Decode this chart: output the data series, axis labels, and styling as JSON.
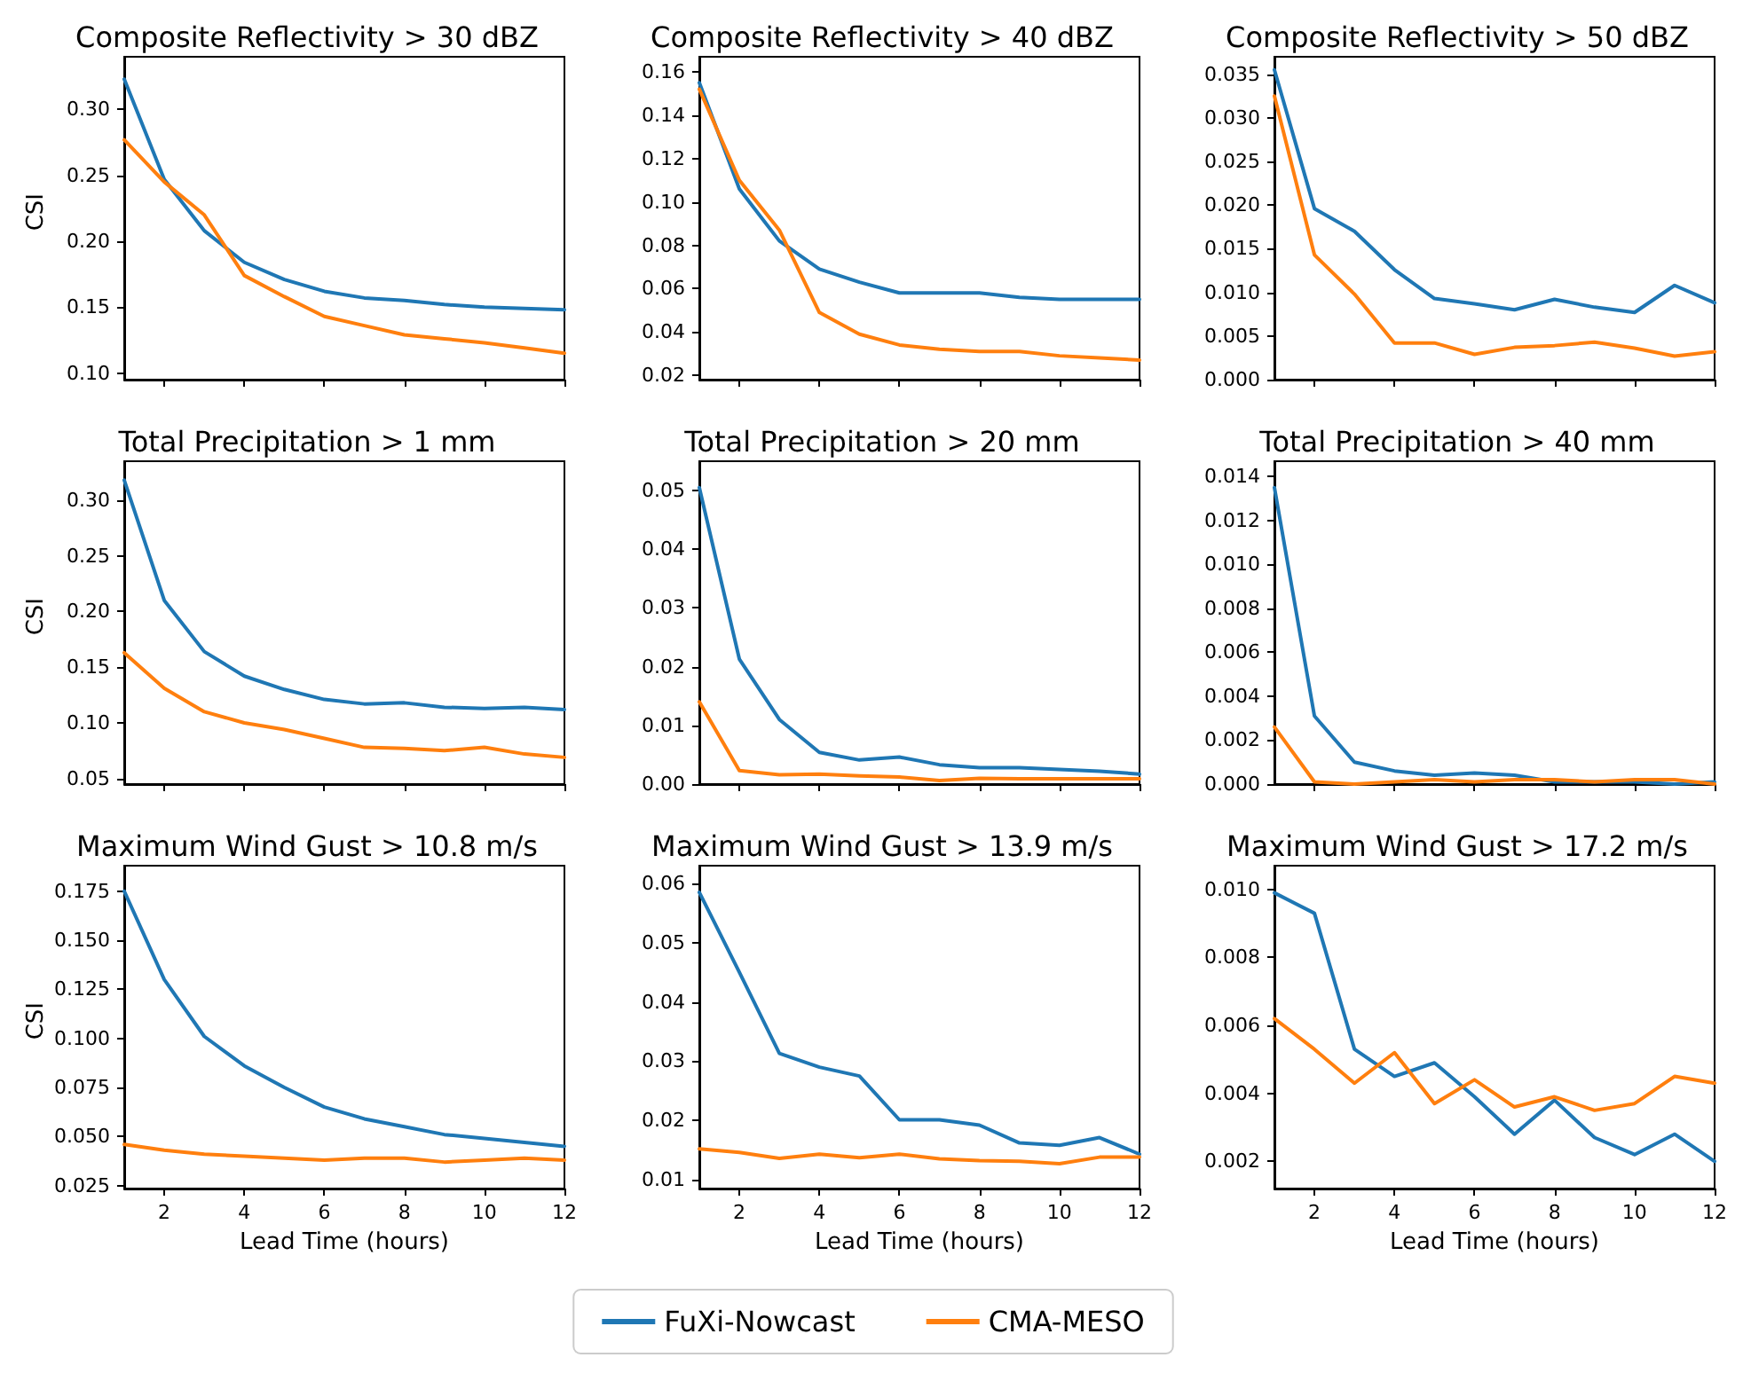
{
  "chart_data": [
    {
      "type": "line",
      "title": "Composite Reflectivity > 30 dBZ",
      "ylabel": "CSI",
      "x": [
        1,
        2,
        3,
        4,
        5,
        6,
        7,
        8,
        9,
        10,
        11,
        12
      ],
      "xlim": [
        1,
        12
      ],
      "xticks": [
        2,
        4,
        6,
        8,
        10,
        12
      ],
      "ylim": [
        0.095,
        0.34
      ],
      "yticks": [
        {
          "value": 0.1,
          "label": "0.10"
        },
        {
          "value": 0.15,
          "label": "0.15"
        },
        {
          "value": 0.2,
          "label": "0.20"
        },
        {
          "value": 0.25,
          "label": "0.25"
        },
        {
          "value": 0.3,
          "label": "0.30"
        }
      ],
      "tick_labels": "y",
      "series": [
        {
          "color": "#1f77b4",
          "values": [
            0.323,
            0.247,
            0.208,
            0.184,
            0.171,
            0.162,
            0.157,
            0.155,
            0.152,
            0.15,
            0.149,
            0.148
          ]
        },
        {
          "color": "#ff7f0e",
          "values": [
            0.277,
            0.245,
            0.22,
            0.174,
            0.158,
            0.143,
            0.136,
            0.129,
            0.126,
            0.123,
            0.119,
            0.115
          ]
        }
      ]
    },
    {
      "type": "line",
      "title": "Composite Reflectivity > 40 dBZ",
      "x": [
        1,
        2,
        3,
        4,
        5,
        6,
        7,
        8,
        9,
        10,
        11,
        12
      ],
      "xlim": [
        1,
        12
      ],
      "xticks": [
        2,
        4,
        6,
        8,
        10,
        12
      ],
      "ylim": [
        0.018,
        0.167
      ],
      "yticks": [
        {
          "value": 0.02,
          "label": "0.02"
        },
        {
          "value": 0.04,
          "label": "0.04"
        },
        {
          "value": 0.06,
          "label": "0.06"
        },
        {
          "value": 0.08,
          "label": "0.08"
        },
        {
          "value": 0.1,
          "label": "0.10"
        },
        {
          "value": 0.12,
          "label": "0.12"
        },
        {
          "value": 0.14,
          "label": "0.14"
        },
        {
          "value": 0.16,
          "label": "0.16"
        }
      ],
      "tick_labels": "y",
      "series": [
        {
          "color": "#1f77b4",
          "values": [
            0.155,
            0.106,
            0.082,
            0.069,
            0.063,
            0.058,
            0.058,
            0.058,
            0.056,
            0.055,
            0.055,
            0.055
          ]
        },
        {
          "color": "#ff7f0e",
          "values": [
            0.152,
            0.11,
            0.087,
            0.049,
            0.039,
            0.034,
            0.032,
            0.031,
            0.031,
            0.029,
            0.028,
            0.027
          ]
        }
      ]
    },
    {
      "type": "line",
      "title": "Composite Reflectivity > 50 dBZ",
      "x": [
        1,
        2,
        3,
        4,
        5,
        6,
        7,
        8,
        9,
        10,
        11,
        12
      ],
      "xlim": [
        1,
        12
      ],
      "xticks": [
        2,
        4,
        6,
        8,
        10,
        12
      ],
      "ylim": [
        0,
        0.037
      ],
      "yticks": [
        {
          "value": 0,
          "label": "0.000"
        },
        {
          "value": 0.005,
          "label": "0.005"
        },
        {
          "value": 0.01,
          "label": "0.010"
        },
        {
          "value": 0.015,
          "label": "0.015"
        },
        {
          "value": 0.02,
          "label": "0.020"
        },
        {
          "value": 0.025,
          "label": "0.025"
        },
        {
          "value": 0.03,
          "label": "0.030"
        },
        {
          "value": 0.035,
          "label": "0.035"
        }
      ],
      "tick_labels": "y",
      "series": [
        {
          "color": "#1f77b4",
          "values": [
            0.0355,
            0.0196,
            0.017,
            0.0126,
            0.0093,
            0.0087,
            0.008,
            0.0092,
            0.0083,
            0.0077,
            0.0108,
            0.0088
          ]
        },
        {
          "color": "#ff7f0e",
          "values": [
            0.0325,
            0.0143,
            0.0098,
            0.0042,
            0.0042,
            0.0029,
            0.0037,
            0.0039,
            0.0043,
            0.0036,
            0.0027,
            0.0032
          ]
        }
      ]
    },
    {
      "type": "line",
      "title": "Total Precipitation > 1 mm",
      "ylabel": "CSI",
      "x": [
        1,
        2,
        3,
        4,
        5,
        6,
        7,
        8,
        9,
        10,
        11,
        12
      ],
      "xlim": [
        1,
        12
      ],
      "xticks": [
        2,
        4,
        6,
        8,
        10,
        12
      ],
      "ylim": [
        0.045,
        0.335
      ],
      "yticks": [
        {
          "value": 0.05,
          "label": "0.05"
        },
        {
          "value": 0.1,
          "label": "0.10"
        },
        {
          "value": 0.15,
          "label": "0.15"
        },
        {
          "value": 0.2,
          "label": "0.20"
        },
        {
          "value": 0.25,
          "label": "0.25"
        },
        {
          "value": 0.3,
          "label": "0.30"
        }
      ],
      "tick_labels": "y",
      "series": [
        {
          "color": "#1f77b4",
          "values": [
            0.318,
            0.21,
            0.164,
            0.142,
            0.13,
            0.121,
            0.117,
            0.118,
            0.114,
            0.113,
            0.114,
            0.112
          ]
        },
        {
          "color": "#ff7f0e",
          "values": [
            0.163,
            0.131,
            0.11,
            0.1,
            0.094,
            0.086,
            0.078,
            0.077,
            0.075,
            0.078,
            0.072,
            0.069
          ]
        }
      ]
    },
    {
      "type": "line",
      "title": "Total Precipitation > 20 mm",
      "x": [
        1,
        2,
        3,
        4,
        5,
        6,
        7,
        8,
        9,
        10,
        11,
        12
      ],
      "xlim": [
        1,
        12
      ],
      "xticks": [
        2,
        4,
        6,
        8,
        10,
        12
      ],
      "ylim": [
        0,
        0.055
      ],
      "yticks": [
        {
          "value": 0,
          "label": "0.00"
        },
        {
          "value": 0.01,
          "label": "0.01"
        },
        {
          "value": 0.02,
          "label": "0.02"
        },
        {
          "value": 0.03,
          "label": "0.03"
        },
        {
          "value": 0.04,
          "label": "0.04"
        },
        {
          "value": 0.05,
          "label": "0.05"
        }
      ],
      "tick_labels": "y",
      "series": [
        {
          "color": "#1f77b4",
          "values": [
            0.0505,
            0.0213,
            0.011,
            0.0054,
            0.0041,
            0.0046,
            0.0033,
            0.0028,
            0.0028,
            0.0025,
            0.0022,
            0.0017
          ]
        },
        {
          "color": "#ff7f0e",
          "values": [
            0.014,
            0.0023,
            0.0016,
            0.0017,
            0.0014,
            0.0012,
            0.0006,
            0.001,
            0.0009,
            0.0009,
            0.0009,
            0.0009
          ]
        }
      ]
    },
    {
      "type": "line",
      "title": "Total Precipitation > 40 mm",
      "x": [
        1,
        2,
        3,
        4,
        5,
        6,
        7,
        8,
        9,
        10,
        11,
        12
      ],
      "xlim": [
        1,
        12
      ],
      "xticks": [
        2,
        4,
        6,
        8,
        10,
        12
      ],
      "ylim": [
        0,
        0.0147
      ],
      "yticks": [
        {
          "value": 0,
          "label": "0.000"
        },
        {
          "value": 0.002,
          "label": "0.002"
        },
        {
          "value": 0.004,
          "label": "0.004"
        },
        {
          "value": 0.006,
          "label": "0.006"
        },
        {
          "value": 0.008,
          "label": "0.008"
        },
        {
          "value": 0.01,
          "label": "0.010"
        },
        {
          "value": 0.012,
          "label": "0.012"
        },
        {
          "value": 0.014,
          "label": "0.014"
        }
      ],
      "tick_labels": "y",
      "series": [
        {
          "color": "#1f77b4",
          "values": [
            0.0135,
            0.0031,
            0.001,
            0.0006,
            0.0004,
            0.0005,
            0.0004,
            0.0001,
            0.0001,
            0.0001,
            0,
            0.0001
          ]
        },
        {
          "color": "#ff7f0e",
          "values": [
            0.0026,
            0.0001,
            0,
            0.0001,
            0.0002,
            0.0001,
            0.0002,
            0.0002,
            0.0001,
            0.0002,
            0.0002,
            0
          ]
        }
      ]
    },
    {
      "type": "line",
      "title": "Maximum Wind Gust > 10.8 m/s",
      "xlabel": "Lead Time (hours)",
      "ylabel": "CSI",
      "x": [
        1,
        2,
        3,
        4,
        5,
        6,
        7,
        8,
        9,
        10,
        11,
        12
      ],
      "xlim": [
        1,
        12
      ],
      "xticks": [
        2,
        4,
        6,
        8,
        10,
        12
      ],
      "ylim": [
        0.0235,
        0.188
      ],
      "yticks": [
        {
          "value": 0.025,
          "label": "0.025"
        },
        {
          "value": 0.05,
          "label": "0.050"
        },
        {
          "value": 0.075,
          "label": "0.075"
        },
        {
          "value": 0.1,
          "label": "0.100"
        },
        {
          "value": 0.125,
          "label": "0.125"
        },
        {
          "value": 0.15,
          "label": "0.150"
        },
        {
          "value": 0.175,
          "label": "0.175"
        }
      ],
      "series": [
        {
          "color": "#1f77b4",
          "values": [
            0.175,
            0.13,
            0.101,
            0.086,
            0.075,
            0.065,
            0.059,
            0.055,
            0.051,
            0.049,
            0.047,
            0.045
          ]
        },
        {
          "color": "#ff7f0e",
          "values": [
            0.046,
            0.043,
            0.041,
            0.04,
            0.039,
            0.038,
            0.039,
            0.039,
            0.037,
            0.038,
            0.039,
            0.038
          ]
        }
      ]
    },
    {
      "type": "line",
      "title": "Maximum Wind Gust > 13.9 m/s",
      "xlabel": "Lead Time (hours)",
      "x": [
        1,
        2,
        3,
        4,
        5,
        6,
        7,
        8,
        9,
        10,
        11,
        12
      ],
      "xlim": [
        1,
        12
      ],
      "xticks": [
        2,
        4,
        6,
        8,
        10,
        12
      ],
      "ylim": [
        0.0085,
        0.063
      ],
      "yticks": [
        {
          "value": 0.01,
          "label": "0.01"
        },
        {
          "value": 0.02,
          "label": "0.02"
        },
        {
          "value": 0.03,
          "label": "0.03"
        },
        {
          "value": 0.04,
          "label": "0.04"
        },
        {
          "value": 0.05,
          "label": "0.05"
        },
        {
          "value": 0.06,
          "label": "0.06"
        }
      ],
      "legend": "bottom",
      "series": [
        {
          "name": "FuXi-Nowcast",
          "color": "#1f77b4",
          "values": [
            0.0585,
            0.045,
            0.0313,
            0.029,
            0.0275,
            0.0201,
            0.0201,
            0.0192,
            0.0162,
            0.0158,
            0.0171,
            0.0143
          ]
        },
        {
          "name": "CMA-MESO",
          "color": "#ff7f0e",
          "values": [
            0.0152,
            0.0146,
            0.0136,
            0.0143,
            0.0137,
            0.0143,
            0.0135,
            0.0132,
            0.0131,
            0.0127,
            0.0138,
            0.0138
          ]
        }
      ]
    },
    {
      "type": "line",
      "title": "Maximum Wind Gust > 17.2 m/s",
      "xlabel": "Lead Time (hours)",
      "x": [
        1,
        2,
        3,
        4,
        5,
        6,
        7,
        8,
        9,
        10,
        11,
        12
      ],
      "xlim": [
        1,
        12
      ],
      "xticks": [
        2,
        4,
        6,
        8,
        10,
        12
      ],
      "ylim": [
        0.0012,
        0.0107
      ],
      "yticks": [
        {
          "value": 0.002,
          "label": "0.002"
        },
        {
          "value": 0.004,
          "label": "0.004"
        },
        {
          "value": 0.006,
          "label": "0.006"
        },
        {
          "value": 0.008,
          "label": "0.008"
        },
        {
          "value": 0.01,
          "label": "0.010"
        }
      ],
      "series": [
        {
          "color": "#1f77b4",
          "values": [
            0.0099,
            0.0093,
            0.0053,
            0.0045,
            0.0049,
            0.0039,
            0.0028,
            0.0038,
            0.0027,
            0.0022,
            0.0028,
            0.002
          ]
        },
        {
          "color": "#ff7f0e",
          "values": [
            0.0062,
            0.0053,
            0.0043,
            0.0052,
            0.0037,
            0.0044,
            0.0036,
            0.0039,
            0.0035,
            0.0037,
            0.0045,
            0.0043
          ]
        }
      ]
    }
  ]
}
